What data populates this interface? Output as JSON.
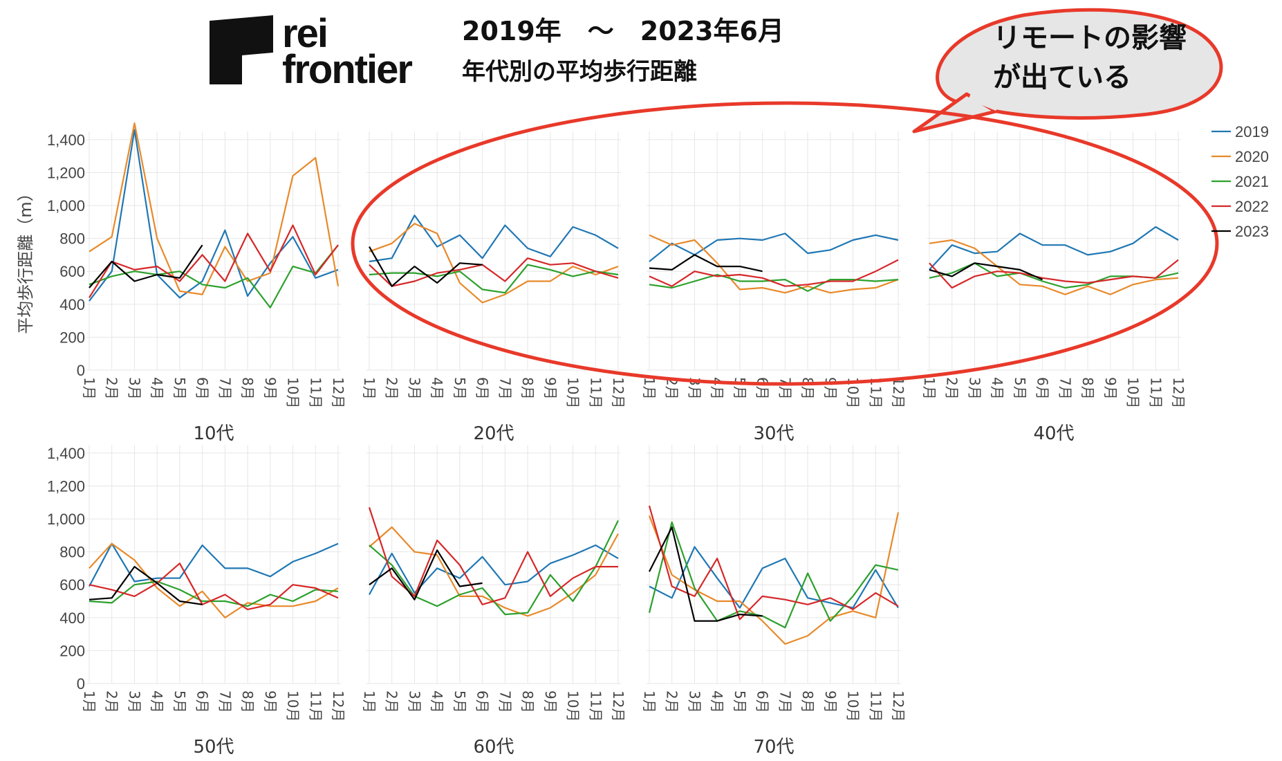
{
  "header": {
    "logo_line1": "rei",
    "logo_line2": "frontier",
    "title_line1": "2019年　～　2023年6月",
    "title_line2": "年代別の平均歩行距離"
  },
  "callout": {
    "line1": "リモートの影響",
    "line2": "が出ている",
    "accent_color": "#e8392a",
    "fill_color": "#e6e6e6"
  },
  "chart_data": {
    "type": "line",
    "ylabel": "平均歩行距離（m）",
    "ylim": [
      0,
      1450
    ],
    "yticks": [
      0,
      200,
      400,
      600,
      800,
      1000,
      1200,
      1400
    ],
    "ytick_labels": [
      "0",
      "200",
      "400",
      "600",
      "800",
      "1,000",
      "1,200",
      "1,400"
    ],
    "months": [
      "1月",
      "2月",
      "3月",
      "4月",
      "5月",
      "6月",
      "7月",
      "8月",
      "9月",
      "10月",
      "11月",
      "12月"
    ],
    "legend": {
      "position": "right",
      "items": [
        {
          "name": "2019",
          "color": "#1f77b4"
        },
        {
          "name": "2020",
          "color": "#e8892a"
        },
        {
          "name": "2021",
          "color": "#2ca02c"
        },
        {
          "name": "2022",
          "color": "#d62728"
        },
        {
          "name": "2023",
          "color": "#000000"
        }
      ]
    },
    "panels": [
      {
        "title": "10代",
        "series": [
          {
            "name": "2019",
            "values": [
              420,
              600,
              1460,
              580,
              440,
              540,
              850,
              450,
              650,
              810,
              560,
              610
            ]
          },
          {
            "name": "2020",
            "values": [
              720,
              810,
              1500,
              800,
              480,
              460,
              750,
              540,
              590,
              1180,
              1290,
              510
            ]
          },
          {
            "name": "2021",
            "values": [
              520,
              570,
              600,
              580,
              600,
              520,
              500,
              560,
              380,
              630,
              590,
              760
            ]
          },
          {
            "name": "2022",
            "values": [
              440,
              660,
              610,
              630,
              540,
              700,
              540,
              830,
              600,
              880,
              580,
              760
            ]
          },
          {
            "name": "2023",
            "values": [
              500,
              660,
              540,
              580,
              560,
              760
            ]
          }
        ]
      },
      {
        "title": "20代",
        "series": [
          {
            "name": "2019",
            "values": [
              660,
              680,
              940,
              750,
              820,
              680,
              880,
              740,
              690,
              870,
              820,
              740
            ]
          },
          {
            "name": "2020",
            "values": [
              720,
              770,
              890,
              830,
              530,
              410,
              460,
              540,
              540,
              630,
              580,
              630
            ]
          },
          {
            "name": "2021",
            "values": [
              580,
              590,
              590,
              570,
              600,
              490,
              470,
              640,
              610,
              570,
              600,
              580
            ]
          },
          {
            "name": "2022",
            "values": [
              640,
              510,
              540,
              590,
              610,
              640,
              540,
              680,
              640,
              650,
              600,
              560
            ]
          },
          {
            "name": "2023",
            "values": [
              750,
              510,
              630,
              530,
              650,
              640
            ]
          }
        ]
      },
      {
        "title": "30代",
        "series": [
          {
            "name": "2019",
            "values": [
              660,
              770,
              700,
              790,
              800,
              790,
              830,
              710,
              730,
              790,
              820,
              790
            ]
          },
          {
            "name": "2020",
            "values": [
              820,
              760,
              790,
              650,
              490,
              500,
              470,
              510,
              470,
              490,
              500,
              550
            ]
          },
          {
            "name": "2021",
            "values": [
              520,
              500,
              540,
              580,
              540,
              540,
              550,
              480,
              550,
              550,
              540,
              550
            ]
          },
          {
            "name": "2022",
            "values": [
              570,
              510,
              600,
              570,
              580,
              560,
              510,
              520,
              540,
              540,
              600,
              670
            ]
          },
          {
            "name": "2023",
            "values": [
              620,
              610,
              700,
              630,
              630,
              600
            ]
          }
        ]
      },
      {
        "title": "40代",
        "series": [
          {
            "name": "2019",
            "values": [
              610,
              760,
              710,
              720,
              830,
              760,
              760,
              700,
              720,
              770,
              870,
              790
            ]
          },
          {
            "name": "2020",
            "values": [
              770,
              790,
              740,
              630,
              520,
              510,
              460,
              510,
              460,
              520,
              550,
              560
            ]
          },
          {
            "name": "2021",
            "values": [
              560,
              590,
              650,
              570,
              590,
              540,
              500,
              520,
              570,
              570,
              560,
              590
            ]
          },
          {
            "name": "2022",
            "values": [
              650,
              500,
              570,
              600,
              590,
              560,
              540,
              530,
              550,
              570,
              560,
              670
            ]
          },
          {
            "name": "2023",
            "values": [
              610,
              570,
              650,
              630,
              610,
              550
            ]
          }
        ]
      },
      {
        "title": "50代",
        "series": [
          {
            "name": "2019",
            "values": [
              590,
              850,
              620,
              640,
              640,
              840,
              700,
              700,
              650,
              740,
              790,
              850
            ]
          },
          {
            "name": "2020",
            "values": [
              700,
              850,
              750,
              580,
              470,
              560,
              400,
              490,
              470,
              470,
              500,
              580
            ]
          },
          {
            "name": "2021",
            "values": [
              500,
              490,
              600,
              620,
              570,
              500,
              500,
              470,
              540,
              500,
              570,
              560
            ]
          },
          {
            "name": "2022",
            "values": [
              600,
              570,
              530,
              610,
              730,
              480,
              540,
              450,
              480,
              600,
              580,
              520
            ]
          },
          {
            "name": "2023",
            "values": [
              510,
              520,
              710,
              610,
              500,
              480
            ]
          }
        ]
      },
      {
        "title": "60代",
        "series": [
          {
            "name": "2019",
            "values": [
              540,
              790,
              550,
              700,
              640,
              770,
              600,
              620,
              730,
              780,
              840,
              760
            ]
          },
          {
            "name": "2020",
            "values": [
              830,
              950,
              800,
              780,
              530,
              530,
              460,
              410,
              460,
              550,
              660,
              910
            ]
          },
          {
            "name": "2021",
            "values": [
              840,
              720,
              530,
              470,
              540,
              580,
              420,
              430,
              660,
              500,
              710,
              990
            ]
          },
          {
            "name": "2022",
            "values": [
              1070,
              650,
              530,
              870,
              720,
              480,
              520,
              800,
              530,
              640,
              710,
              710
            ]
          },
          {
            "name": "2023",
            "values": [
              600,
              700,
              510,
              810,
              590,
              610
            ]
          }
        ]
      },
      {
        "title": "70代",
        "series": [
          {
            "name": "2019",
            "values": [
              590,
              520,
              830,
              640,
              460,
              700,
              760,
              520,
              490,
              460,
              690,
              460
            ]
          },
          {
            "name": "2020",
            "values": [
              1020,
              660,
              570,
              500,
              500,
              380,
              240,
              290,
              400,
              440,
              400,
              1040
            ]
          },
          {
            "name": "2021",
            "values": [
              430,
              980,
              580,
              380,
              440,
              410,
              340,
              670,
              380,
              530,
              720,
              690
            ]
          },
          {
            "name": "2022",
            "values": [
              1080,
              590,
              530,
              760,
              390,
              530,
              510,
              480,
              520,
              450,
              550,
              470
            ]
          },
          {
            "name": "2023",
            "values": [
              680,
              950,
              380,
              380,
              420,
              410
            ]
          }
        ]
      }
    ]
  }
}
